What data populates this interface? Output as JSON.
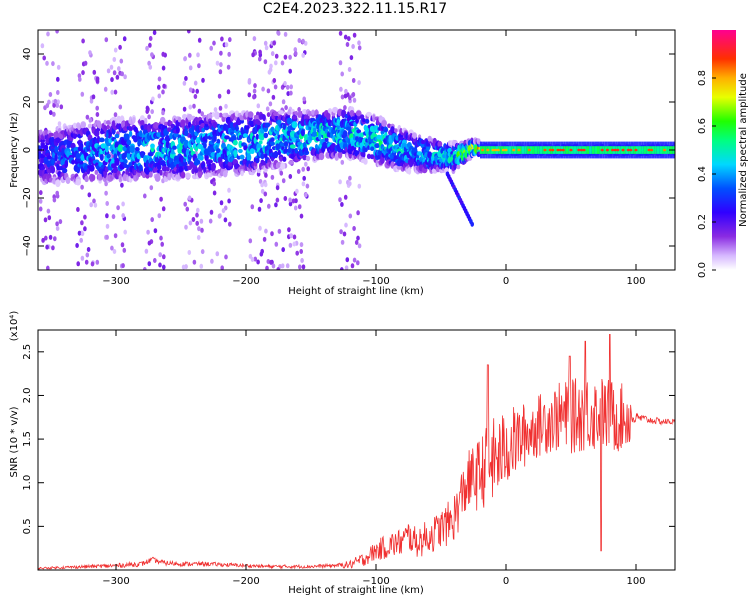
{
  "figure": {
    "title": "C2E4.2023.322.11.15.R17"
  },
  "colors": {
    "snr_line": "#f03030",
    "axis": "#000000"
  },
  "chart_data": [
    {
      "type": "heatmap",
      "name": "spectrogram",
      "xlabel": "Height of straight line (km)",
      "ylabel": "Frequency (Hz)",
      "xlim": [
        -360,
        130
      ],
      "ylim": [
        -50,
        50
      ],
      "x_ticks": [
        -300,
        -200,
        -100,
        0,
        100
      ],
      "y_ticks": [
        -40,
        -20,
        0,
        20,
        40
      ],
      "colorbar": {
        "label": "Normalized spectral amplitude",
        "range": [
          0,
          1
        ],
        "ticks": [
          "0.0",
          "0.2",
          "0.4",
          "0.6",
          "0.8"
        ],
        "tick_values": [
          0,
          0.2,
          0.4,
          0.6,
          0.8
        ],
        "colormap": "rainbow (white-purple-blue-cyan-green-yellow-red)"
      },
      "band": {
        "x": [
          -360,
          -300,
          -250,
          -200,
          -170,
          -150,
          -120,
          -100,
          -80,
          -60,
          -40,
          -25,
          -10,
          0,
          50,
          100,
          130
        ],
        "center_freq": [
          -3,
          0,
          1,
          3,
          5,
          6,
          7,
          4,
          0,
          -2,
          -3,
          1,
          0,
          0,
          0,
          0,
          0
        ],
        "half_width": [
          8,
          9,
          9,
          9,
          8,
          7,
          7,
          7,
          6,
          5,
          4,
          2,
          2,
          2,
          2,
          2,
          2
        ],
        "peak_amplitude": [
          0.3,
          0.45,
          0.45,
          0.45,
          0.5,
          0.5,
          0.5,
          0.5,
          0.45,
          0.45,
          0.5,
          0.8,
          0.75,
          0.75,
          0.85,
          0.85,
          0.75
        ]
      },
      "tail": {
        "x": [
          -45,
          -25
        ],
        "freq": [
          -10,
          -32
        ]
      },
      "broadband_columns_x": [
        -350,
        -322,
        -300,
        -270,
        -240,
        -220,
        -190,
        -175,
        -160,
        -120
      ]
    },
    {
      "type": "line",
      "name": "snr",
      "xlabel": "Height of straight line (km)",
      "ylabel": "SNR (10 * v/v)",
      "y_multiplier": "(x10⁴)",
      "xlim": [
        -360,
        130
      ],
      "ylim": [
        0,
        2.75
      ],
      "x_ticks": [
        -300,
        -200,
        -100,
        0,
        100
      ],
      "y_ticks": [
        0.5,
        1.0,
        1.5,
        2.0,
        2.5
      ],
      "y_tick_labels": [
        "0.5",
        "1.0",
        "1.5",
        "2.0",
        "2.5"
      ],
      "series": [
        {
          "x": [
            -360,
            -340,
            -320,
            -300,
            -280,
            -272,
            -268,
            -262,
            -250,
            -230,
            -200,
            -180,
            -150,
            -120,
            -110,
            -100,
            -90,
            -80,
            -75,
            -70,
            -65,
            -60,
            -55,
            -50,
            -45,
            -40,
            -35,
            -30,
            -25,
            -20,
            -15,
            -10,
            -5,
            0,
            10,
            20,
            30,
            40,
            50,
            60,
            70,
            80,
            90,
            100,
            110,
            120,
            130
          ],
          "y": [
            0.02,
            0.03,
            0.04,
            0.05,
            0.07,
            0.12,
            0.1,
            0.08,
            0.07,
            0.07,
            0.05,
            0.04,
            0.04,
            0.06,
            0.12,
            0.22,
            0.28,
            0.32,
            0.4,
            0.32,
            0.34,
            0.38,
            0.42,
            0.48,
            0.52,
            0.6,
            0.8,
            1.0,
            1.05,
            1.1,
            1.2,
            1.25,
            1.3,
            1.4,
            1.5,
            1.6,
            1.7,
            1.75,
            1.75,
            1.8,
            1.8,
            1.75,
            1.75,
            1.75,
            1.72,
            1.7,
            1.7
          ]
        }
      ],
      "noise_amplitude": {
        "x": [
          -360,
          -280,
          -200,
          -130,
          -110,
          -90,
          -70,
          -50,
          -30,
          -10,
          0,
          20,
          40,
          60,
          80,
          95,
          100,
          130
        ],
        "amp": [
          0.01,
          0.03,
          0.02,
          0.02,
          0.08,
          0.15,
          0.18,
          0.22,
          0.35,
          0.5,
          0.45,
          0.35,
          0.4,
          0.45,
          0.45,
          0.35,
          0.05,
          0.03
        ]
      },
      "spikes": [
        {
          "x": -14,
          "y": 2.35
        },
        {
          "x": 49,
          "y": 2.45
        },
        {
          "x": 61,
          "y": 2.62
        },
        {
          "x": 80,
          "y": 2.7
        },
        {
          "x": 73,
          "y": 0.22
        }
      ]
    }
  ]
}
